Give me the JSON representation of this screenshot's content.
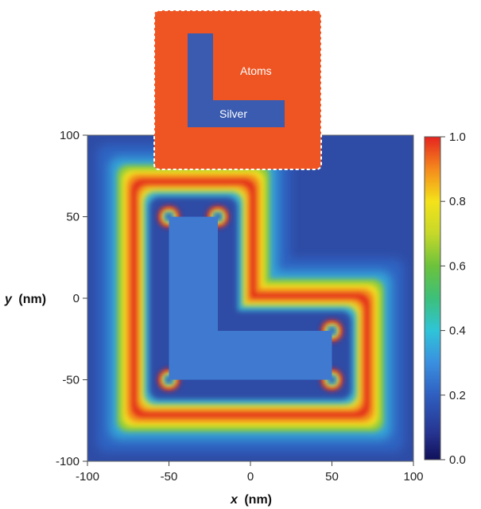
{
  "chart_data": {
    "type": "heatmap",
    "title": "",
    "xlabel_var": "x",
    "xlabel_unit": "(nm)",
    "ylabel_var": "y",
    "ylabel_unit": "(nm)",
    "xlim": [
      -100,
      100
    ],
    "ylim": [
      -100,
      100
    ],
    "x_ticks": [
      "-100",
      "-50",
      "0",
      "50",
      "100"
    ],
    "y_ticks": [
      "100",
      "50",
      "0",
      "-50",
      "-100"
    ],
    "colorbar": {
      "range": [
        0.0,
        1.0
      ],
      "ticks": [
        "1.0",
        "0.8",
        "0.6",
        "0.4",
        "0.2",
        "0.0"
      ],
      "colormap": "jet"
    },
    "silver_L_shape": {
      "vertical_bar": {
        "x": [
          -50,
          -20
        ],
        "y": [
          -50,
          50
        ]
      },
      "horizontal_bar": {
        "x": [
          -50,
          50
        ],
        "y": [
          -50,
          -20
        ]
      }
    },
    "grid": false
  },
  "inset": {
    "label_atoms": "Atoms",
    "label_silver": "Silver",
    "background_color": "#ee5522",
    "silver_color": "#3a5bb0"
  },
  "colors": {
    "background": "#2e4ca6",
    "silver_fill": "#3f7ad0"
  }
}
